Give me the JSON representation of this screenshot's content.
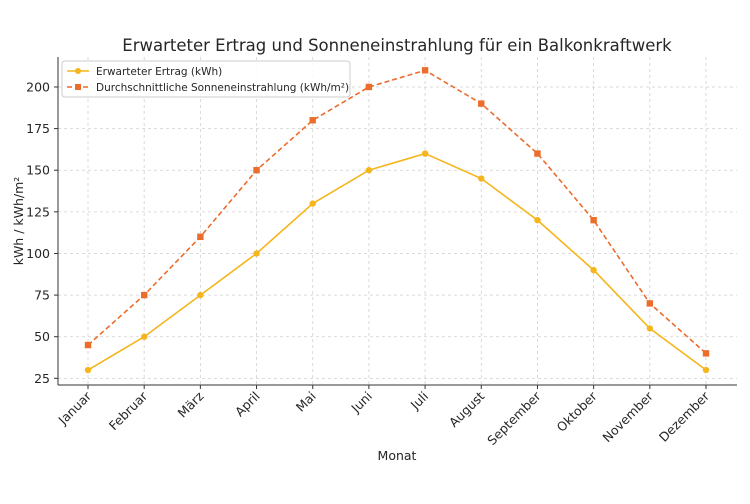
{
  "chart_data": {
    "type": "line",
    "title": "Erwarteter Ertrag und Sonneneinstrahlung für ein Balkonkraftwerk",
    "xlabel": "Monat",
    "ylabel": "kWh / kWh/m²",
    "categories": [
      "Januar",
      "Februar",
      "März",
      "April",
      "Mai",
      "Juni",
      "Juli",
      "August",
      "September",
      "Oktober",
      "November",
      "Dezember"
    ],
    "yticks": [
      25,
      50,
      75,
      100,
      125,
      150,
      175,
      200
    ],
    "ylim": [
      21,
      218
    ],
    "grid": true,
    "legend_position": "top-left",
    "series": [
      {
        "name": "Erwarteter Ertrag (kWh)",
        "values": [
          30,
          50,
          75,
          100,
          130,
          150,
          160,
          145,
          120,
          90,
          55,
          30
        ],
        "color": "#f5b51c",
        "style": "solid",
        "marker": "circle"
      },
      {
        "name": "Durchschnittliche Sonneneinstrahlung (kWh/m²)",
        "values": [
          45,
          75,
          110,
          150,
          180,
          200,
          210,
          190,
          160,
          120,
          70,
          40
        ],
        "color": "#ec6c2c",
        "style": "dashed",
        "marker": "square"
      }
    ]
  }
}
